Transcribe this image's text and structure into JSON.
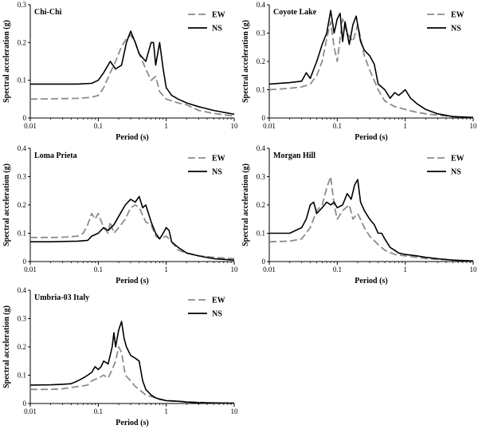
{
  "styles": {
    "EW": {
      "color": "#8c8c8c",
      "dash": "9,4"
    },
    "NS": {
      "color": "#000000",
      "dash": ""
    }
  },
  "chart_data": [
    {
      "type": "line",
      "title": "Chi-Chi",
      "xlabel": "Period (s)",
      "ylabel": "Spectral acceleration (g)",
      "xscale": "log",
      "xlim": [
        0.01,
        10
      ],
      "ylim": [
        0,
        0.3
      ],
      "yticks": [
        "0",
        "0.1",
        "0.2",
        "0.3"
      ],
      "xticks": [
        "0.01",
        "0.1",
        "1",
        "10"
      ],
      "legend": "top-right",
      "series": [
        {
          "name": "EW",
          "x": [
            0.01,
            0.05,
            0.08,
            0.1,
            0.12,
            0.15,
            0.18,
            0.22,
            0.26,
            0.3,
            0.35,
            0.4,
            0.5,
            0.6,
            0.7,
            0.8,
            1.0,
            1.5,
            2,
            3,
            5,
            10
          ],
          "y": [
            0.05,
            0.052,
            0.055,
            0.06,
            0.08,
            0.12,
            0.15,
            0.19,
            0.21,
            0.22,
            0.2,
            0.17,
            0.13,
            0.1,
            0.11,
            0.07,
            0.05,
            0.04,
            0.035,
            0.02,
            0.012,
            0.005
          ]
        },
        {
          "name": "NS",
          "x": [
            0.01,
            0.05,
            0.08,
            0.1,
            0.12,
            0.15,
            0.18,
            0.22,
            0.26,
            0.3,
            0.35,
            0.4,
            0.5,
            0.6,
            0.65,
            0.7,
            0.8,
            0.9,
            1.0,
            1.2,
            1.5,
            2,
            3,
            5,
            10
          ],
          "y": [
            0.09,
            0.09,
            0.092,
            0.1,
            0.12,
            0.15,
            0.13,
            0.14,
            0.2,
            0.23,
            0.2,
            0.17,
            0.15,
            0.2,
            0.2,
            0.14,
            0.2,
            0.13,
            0.08,
            0.06,
            0.05,
            0.04,
            0.03,
            0.02,
            0.01
          ]
        }
      ]
    },
    {
      "type": "line",
      "title": "Coyote Lake",
      "xlabel": "Period (s)",
      "ylabel": "Spectral acceleration (g)",
      "xscale": "log",
      "xlim": [
        0.01,
        10
      ],
      "ylim": [
        0,
        0.4
      ],
      "yticks": [
        "0",
        "0.1",
        "0.2",
        "0.3",
        "0.4"
      ],
      "xticks": [
        "0.01",
        "0.1",
        "1",
        "10"
      ],
      "legend": "top-right",
      "series": [
        {
          "name": "EW",
          "x": [
            0.01,
            0.02,
            0.03,
            0.04,
            0.05,
            0.06,
            0.07,
            0.08,
            0.09,
            0.1,
            0.12,
            0.14,
            0.17,
            0.2,
            0.25,
            0.3,
            0.4,
            0.5,
            0.7,
            1.0,
            1.5,
            2,
            3,
            5,
            10
          ],
          "y": [
            0.1,
            0.105,
            0.11,
            0.12,
            0.15,
            0.2,
            0.28,
            0.34,
            0.25,
            0.2,
            0.35,
            0.3,
            0.27,
            0.33,
            0.22,
            0.17,
            0.1,
            0.06,
            0.04,
            0.03,
            0.02,
            0.015,
            0.01,
            0.005,
            0.002
          ]
        },
        {
          "name": "NS",
          "x": [
            0.01,
            0.02,
            0.03,
            0.035,
            0.04,
            0.05,
            0.06,
            0.07,
            0.08,
            0.09,
            0.1,
            0.11,
            0.12,
            0.13,
            0.15,
            0.17,
            0.19,
            0.22,
            0.25,
            0.3,
            0.35,
            0.4,
            0.5,
            0.6,
            0.7,
            0.8,
            0.9,
            1.0,
            1.2,
            1.5,
            2,
            3,
            5,
            10
          ],
          "y": [
            0.12,
            0.125,
            0.13,
            0.16,
            0.14,
            0.2,
            0.26,
            0.3,
            0.38,
            0.3,
            0.35,
            0.37,
            0.27,
            0.34,
            0.26,
            0.33,
            0.36,
            0.27,
            0.24,
            0.22,
            0.19,
            0.12,
            0.1,
            0.07,
            0.09,
            0.08,
            0.09,
            0.1,
            0.07,
            0.05,
            0.03,
            0.015,
            0.005,
            0.002
          ]
        }
      ]
    },
    {
      "type": "line",
      "title": "Loma Prieta",
      "xlabel": "Period (s)",
      "ylabel": "Spectral acceleration (g)",
      "xscale": "log",
      "xlim": [
        0.01,
        10
      ],
      "ylim": [
        0,
        0.4
      ],
      "yticks": [
        "0",
        "0.1",
        "0.2",
        "0.3",
        "0.4"
      ],
      "xticks": [
        "0.01",
        "0.1",
        "1",
        "10"
      ],
      "legend": "top-right",
      "series": [
        {
          "name": "EW",
          "x": [
            0.01,
            0.02,
            0.03,
            0.05,
            0.06,
            0.07,
            0.08,
            0.09,
            0.1,
            0.12,
            0.14,
            0.15,
            0.17,
            0.2,
            0.25,
            0.3,
            0.35,
            0.4,
            0.5,
            0.6,
            0.7,
            0.8,
            1.0,
            1.2,
            1.5,
            2,
            3,
            5,
            10
          ],
          "y": [
            0.085,
            0.085,
            0.086,
            0.09,
            0.1,
            0.13,
            0.17,
            0.15,
            0.17,
            0.12,
            0.1,
            0.14,
            0.1,
            0.12,
            0.15,
            0.19,
            0.2,
            0.19,
            0.14,
            0.13,
            0.09,
            0.08,
            0.09,
            0.07,
            0.04,
            0.03,
            0.02,
            0.015,
            0.01
          ]
        },
        {
          "name": "NS",
          "x": [
            0.01,
            0.02,
            0.03,
            0.05,
            0.07,
            0.08,
            0.1,
            0.12,
            0.14,
            0.17,
            0.2,
            0.25,
            0.3,
            0.35,
            0.4,
            0.45,
            0.5,
            0.6,
            0.7,
            0.8,
            0.9,
            1.0,
            1.1,
            1.2,
            1.5,
            2,
            3,
            5,
            10
          ],
          "y": [
            0.07,
            0.07,
            0.071,
            0.072,
            0.075,
            0.09,
            0.1,
            0.12,
            0.11,
            0.13,
            0.16,
            0.2,
            0.22,
            0.21,
            0.23,
            0.19,
            0.2,
            0.14,
            0.1,
            0.08,
            0.1,
            0.12,
            0.11,
            0.07,
            0.05,
            0.03,
            0.02,
            0.01,
            0.005
          ]
        }
      ]
    },
    {
      "type": "line",
      "title": "Morgan Hill",
      "xlabel": "Period (s)",
      "ylabel": "Spectral acceleration (g)",
      "xscale": "log",
      "xlim": [
        0.01,
        10
      ],
      "ylim": [
        0,
        0.4
      ],
      "yticks": [
        "0",
        "0.1",
        "0.2",
        "0.3",
        "0.4"
      ],
      "xticks": [
        "0.01",
        "0.1",
        "1",
        "10"
      ],
      "legend": "top-right",
      "series": [
        {
          "name": "EW",
          "x": [
            0.01,
            0.02,
            0.03,
            0.04,
            0.05,
            0.06,
            0.07,
            0.08,
            0.09,
            0.1,
            0.12,
            0.15,
            0.17,
            0.2,
            0.25,
            0.3,
            0.4,
            0.5,
            0.7,
            1.0,
            1.5,
            2,
            3,
            5,
            10
          ],
          "y": [
            0.07,
            0.072,
            0.08,
            0.12,
            0.18,
            0.2,
            0.26,
            0.3,
            0.2,
            0.15,
            0.18,
            0.2,
            0.15,
            0.17,
            0.12,
            0.09,
            0.06,
            0.04,
            0.025,
            0.02,
            0.015,
            0.01,
            0.008,
            0.005,
            0.002
          ]
        },
        {
          "name": "NS",
          "x": [
            0.01,
            0.02,
            0.03,
            0.035,
            0.04,
            0.045,
            0.05,
            0.06,
            0.07,
            0.08,
            0.09,
            0.1,
            0.12,
            0.14,
            0.16,
            0.18,
            0.2,
            0.22,
            0.25,
            0.3,
            0.35,
            0.4,
            0.45,
            0.5,
            0.6,
            0.7,
            0.8,
            1.0,
            1.5,
            2,
            3,
            5,
            10
          ],
          "y": [
            0.1,
            0.1,
            0.12,
            0.15,
            0.2,
            0.21,
            0.17,
            0.19,
            0.21,
            0.2,
            0.21,
            0.19,
            0.2,
            0.24,
            0.22,
            0.27,
            0.29,
            0.21,
            0.18,
            0.15,
            0.13,
            0.1,
            0.1,
            0.08,
            0.05,
            0.04,
            0.03,
            0.025,
            0.02,
            0.015,
            0.01,
            0.005,
            0.002
          ]
        }
      ]
    },
    {
      "type": "line",
      "title": "Umbria-03 Italy",
      "xlabel": "Period (s)",
      "ylabel": "Spectral acceleration (g)",
      "xscale": "log",
      "xlim": [
        0.01,
        10
      ],
      "ylim": [
        0,
        0.4
      ],
      "yticks": [
        "0",
        "0.1",
        "0.2",
        "0.3",
        "0.4"
      ],
      "xticks": [
        "0.01",
        "0.1",
        "1",
        "10"
      ],
      "legend": "top-right",
      "series": [
        {
          "name": "EW",
          "x": [
            0.01,
            0.02,
            0.03,
            0.05,
            0.07,
            0.08,
            0.1,
            0.12,
            0.14,
            0.16,
            0.18,
            0.2,
            0.22,
            0.25,
            0.3,
            0.35,
            0.4,
            0.5,
            0.7,
            1.0,
            1.5,
            2,
            3,
            5,
            10
          ],
          "y": [
            0.05,
            0.05,
            0.052,
            0.06,
            0.065,
            0.08,
            0.09,
            0.1,
            0.09,
            0.12,
            0.15,
            0.2,
            0.18,
            0.1,
            0.08,
            0.06,
            0.05,
            0.03,
            0.02,
            0.01,
            0.008,
            0.006,
            0.004,
            0.002,
            0.001
          ]
        },
        {
          "name": "NS",
          "x": [
            0.01,
            0.02,
            0.03,
            0.04,
            0.05,
            0.06,
            0.07,
            0.08,
            0.09,
            0.1,
            0.11,
            0.12,
            0.14,
            0.16,
            0.17,
            0.18,
            0.2,
            0.22,
            0.24,
            0.26,
            0.3,
            0.35,
            0.4,
            0.45,
            0.5,
            0.6,
            0.7,
            0.8,
            1.0,
            1.5,
            2,
            3,
            5,
            10
          ],
          "y": [
            0.065,
            0.066,
            0.068,
            0.07,
            0.08,
            0.09,
            0.1,
            0.11,
            0.13,
            0.12,
            0.13,
            0.15,
            0.14,
            0.2,
            0.25,
            0.2,
            0.26,
            0.29,
            0.23,
            0.2,
            0.17,
            0.16,
            0.15,
            0.08,
            0.05,
            0.03,
            0.02,
            0.015,
            0.01,
            0.008,
            0.005,
            0.003,
            0.002,
            0.001
          ]
        }
      ]
    }
  ]
}
